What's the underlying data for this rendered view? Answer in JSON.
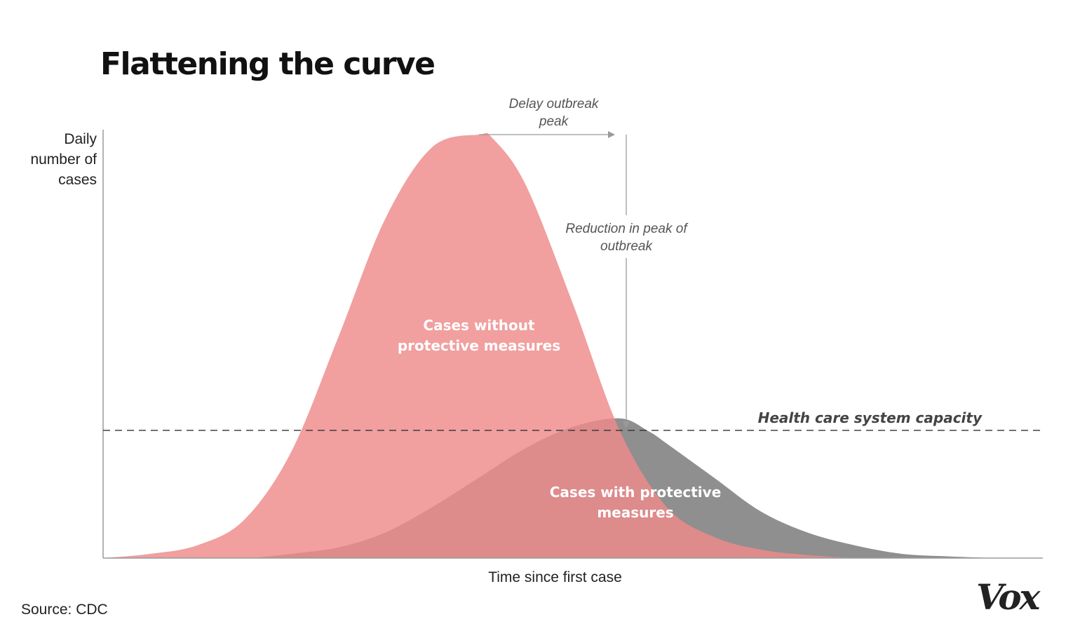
{
  "chart_data": {
    "type": "area",
    "title": "Flattening the curve",
    "xlabel": "Time since first case",
    "ylabel": "Daily number of cases",
    "source": "Source: CDC",
    "brand": "Vox",
    "xlim": [
      0,
      100
    ],
    "ylim": [
      0,
      100
    ],
    "grid": false,
    "series": [
      {
        "name": "Cases without protective measures",
        "label_lines": [
          "Cases without",
          "protective measures"
        ],
        "color": "#ee8a8a",
        "x": [
          0,
          5,
          10,
          15,
          20,
          25,
          30,
          35,
          40,
          41.5,
          45,
          50,
          55,
          60,
          65,
          70,
          75,
          80
        ],
        "values": [
          0,
          1,
          3,
          9,
          25,
          52,
          80,
          97,
          100,
          99,
          88,
          60,
          30,
          12,
          5,
          2,
          0.7,
          0
        ]
      },
      {
        "name": "Cases with protective measures",
        "label_lines": [
          "Cases with protective",
          "measures"
        ],
        "color": "#8f8f8f",
        "x": [
          16,
          20,
          25,
          30,
          35,
          40,
          45,
          50,
          55,
          58,
          60,
          65,
          70,
          75,
          80,
          85,
          90,
          95
        ],
        "values": [
          0,
          1,
          2.5,
          6,
          12,
          19,
          26,
          31,
          33,
          30,
          27,
          19,
          11,
          6,
          3,
          1,
          0.4,
          0
        ]
      }
    ],
    "capacity": {
      "label": "Health care system capacity",
      "value": 30
    },
    "annotations": [
      {
        "id": "delay",
        "lines": [
          "Delay outbreak",
          "peak"
        ]
      },
      {
        "id": "reduction",
        "lines": [
          "Reduction in peak of",
          "outbreak"
        ]
      }
    ]
  }
}
